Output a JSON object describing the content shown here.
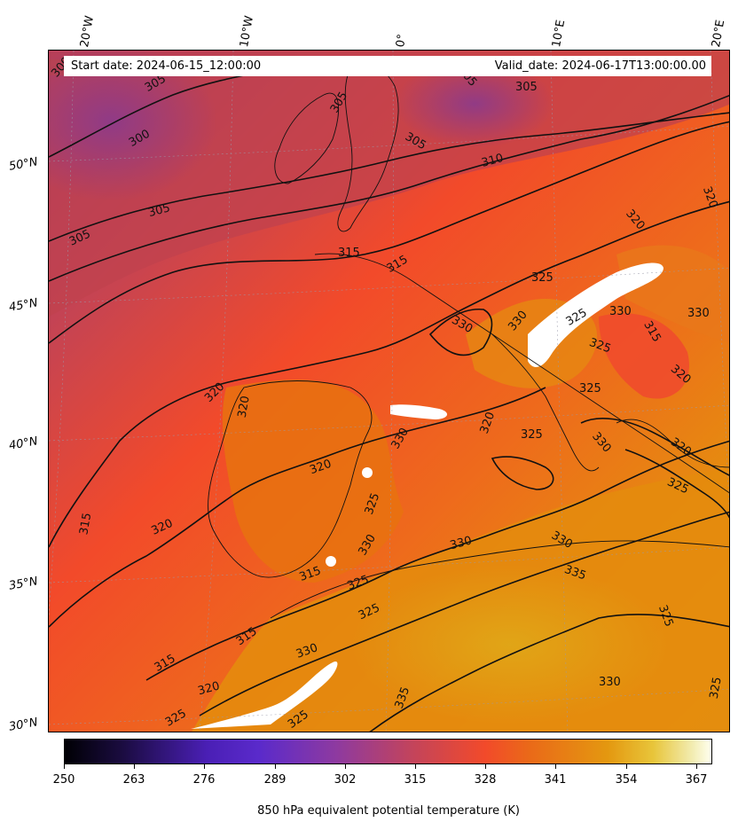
{
  "info": {
    "start_date": "Start date: 2024-06-15_12:00:00",
    "valid_date": "Valid_date: 2024-06-17T13:00:00.00"
  },
  "axes": {
    "lon_labels": [
      "20°W",
      "10°W",
      "0°",
      "10°E",
      "20°E"
    ],
    "lat_labels": [
      "50°N",
      "45°N",
      "40°N",
      "35°N",
      "30°N"
    ]
  },
  "colorbar": {
    "title": "850 hPa equivalent potential temperature (K)",
    "ticks": [
      "250",
      "263",
      "276",
      "289",
      "302",
      "315",
      "328",
      "341",
      "354",
      "367"
    ],
    "range": [
      250,
      370
    ],
    "colormap": "CMRmap-like (black → purple → red → orange → yellow → white)"
  },
  "contour_labels": [
    "300",
    "305",
    "310",
    "315",
    "320",
    "325",
    "330",
    "335"
  ],
  "colors": {
    "cool_region": "#b8454f",
    "mid_region": "#f24a2a",
    "warm_region": "#e6860e",
    "hot_region": "#e0a514",
    "contour_line": "#111111"
  }
}
